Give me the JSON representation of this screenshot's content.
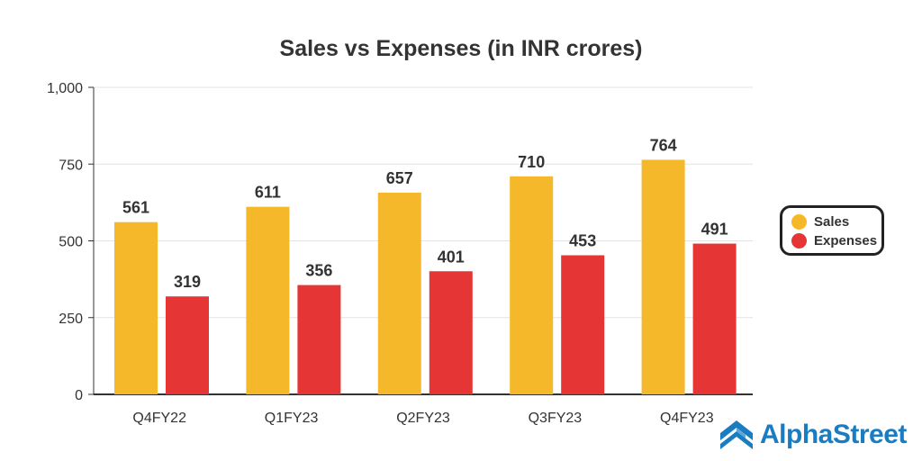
{
  "chart_data": {
    "type": "bar",
    "title": "Sales vs Expenses (in INR crores)",
    "categories": [
      "Q4FY22",
      "Q1FY23",
      "Q2FY23",
      "Q3FY23",
      "Q4FY23"
    ],
    "series": [
      {
        "name": "Sales",
        "color": "#F5B82B",
        "values": [
          561,
          611,
          657,
          710,
          764
        ]
      },
      {
        "name": "Expenses",
        "color": "#E53535",
        "values": [
          319,
          356,
          401,
          453,
          491
        ]
      }
    ],
    "yticks": [
      "0",
      "250",
      "500",
      "750",
      "1,000"
    ],
    "ytick_values": [
      0,
      250,
      500,
      750,
      1000
    ],
    "ylim": [
      0,
      1000
    ],
    "xlabel": "",
    "ylabel": "",
    "grid": true,
    "legend_position": "right"
  },
  "brand": {
    "name": "AlphaStreet",
    "color": "#1a7cc1"
  }
}
